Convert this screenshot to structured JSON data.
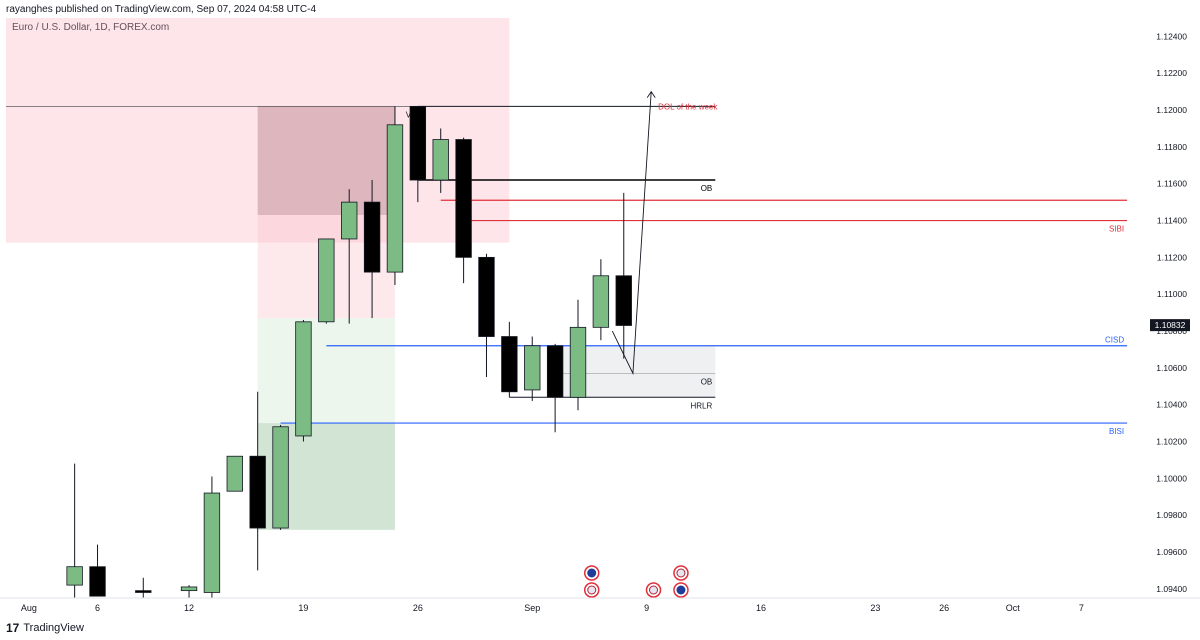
{
  "header": {
    "published": "rayanghes published on TradingView.com, Sep 07, 2024 04:58 UTC-4",
    "symbol": "Euro / U.S. Dollar, 1D, FOREX.com"
  },
  "footer": {
    "logo_glyph": "17",
    "brand": "TradingView"
  },
  "colors": {
    "bull": "#7dbb85",
    "bear": "#000000",
    "red_level": "#e0303a",
    "blue_level": "#2962ff"
  },
  "chart_data": {
    "type": "candlestick",
    "ylim": [
      1.0935,
      1.125
    ],
    "xlim": [
      -1,
      49
    ],
    "y_ticks": [
      "1.12400",
      "1.12200",
      "1.12000",
      "1.11800",
      "1.11600",
      "1.11400",
      "1.11200",
      "1.11000",
      "1.10800",
      "1.10600",
      "1.10400",
      "1.10200",
      "1.10000",
      "1.09800",
      "1.09600",
      "1.09400"
    ],
    "x_ticks": [
      {
        "label": "Aug",
        "i": 0
      },
      {
        "label": "6",
        "i": 3
      },
      {
        "label": "12",
        "i": 7
      },
      {
        "label": "19",
        "i": 12
      },
      {
        "label": "26",
        "i": 17
      },
      {
        "label": "Sep",
        "i": 22
      },
      {
        "label": "9",
        "i": 27
      },
      {
        "label": "16",
        "i": 32
      },
      {
        "label": "23",
        "i": 37
      },
      {
        "label": "26",
        "i": 40
      },
      {
        "label": "Oct",
        "i": 43
      },
      {
        "label": "7",
        "i": 46
      }
    ],
    "last_price": "1.10832",
    "candles": [
      {
        "i": 2,
        "o": 1.0942,
        "h": 1.1008,
        "l": 1.0935,
        "c": 1.0952
      },
      {
        "i": 3,
        "o": 1.0952,
        "h": 1.0964,
        "l": 1.0936,
        "c": 1.0936
      },
      {
        "i": 5,
        "o": 1.0939,
        "h": 1.0946,
        "l": 1.0935,
        "c": 1.0938
      },
      {
        "i": 7,
        "o": 1.0939,
        "h": 1.0942,
        "l": 1.0935,
        "c": 1.0941
      },
      {
        "i": 8,
        "o": 1.0938,
        "h": 1.1001,
        "l": 1.0935,
        "c": 1.0992
      },
      {
        "i": 9,
        "o": 1.0993,
        "h": 1.1012,
        "l": 1.0993,
        "c": 1.1012
      },
      {
        "i": 10,
        "o": 1.1012,
        "h": 1.1047,
        "l": 1.095,
        "c": 1.0973
      },
      {
        "i": 11,
        "o": 1.0973,
        "h": 1.1029,
        "l": 1.0972,
        "c": 1.1028
      },
      {
        "i": 12,
        "o": 1.1023,
        "h": 1.1086,
        "l": 1.102,
        "c": 1.1085
      },
      {
        "i": 13,
        "o": 1.1085,
        "h": 1.113,
        "l": 1.1084,
        "c": 1.113
      },
      {
        "i": 14,
        "o": 1.113,
        "h": 1.1157,
        "l": 1.1084,
        "c": 1.115
      },
      {
        "i": 15,
        "o": 1.115,
        "h": 1.1162,
        "l": 1.1087,
        "c": 1.1112
      },
      {
        "i": 16,
        "o": 1.1112,
        "h": 1.1202,
        "l": 1.1105,
        "c": 1.1192
      },
      {
        "i": 17,
        "o": 1.1202,
        "h": 1.1202,
        "l": 1.115,
        "c": 1.1162
      },
      {
        "i": 18,
        "o": 1.1162,
        "h": 1.119,
        "l": 1.1155,
        "c": 1.1184
      },
      {
        "i": 19,
        "o": 1.1184,
        "h": 1.1185,
        "l": 1.1106,
        "c": 1.112
      },
      {
        "i": 20,
        "o": 1.112,
        "h": 1.1122,
        "l": 1.1055,
        "c": 1.1077
      },
      {
        "i": 21,
        "o": 1.1077,
        "h": 1.1085,
        "l": 1.1044,
        "c": 1.1047
      },
      {
        "i": 22,
        "o": 1.1048,
        "h": 1.1077,
        "l": 1.1042,
        "c": 1.1072
      },
      {
        "i": 23,
        "o": 1.1072,
        "h": 1.1073,
        "l": 1.1025,
        "c": 1.1044
      },
      {
        "i": 24,
        "o": 1.1044,
        "h": 1.1097,
        "l": 1.1037,
        "c": 1.1082
      },
      {
        "i": 25,
        "o": 1.1082,
        "h": 1.1119,
        "l": 1.1075,
        "c": 1.111
      },
      {
        "i": 26,
        "o": 1.111,
        "h": 1.1155,
        "l": 1.1065,
        "c": 1.1083
      }
    ],
    "annotations": {
      "levels": [
        {
          "name": "vi",
          "label": "V.I",
          "y": 1.1202,
          "i0": -1,
          "i1": 17,
          "color": "#131722",
          "width": 0.6
        },
        {
          "name": "vi-right",
          "label": "",
          "y": 1.1202,
          "i0": 17,
          "i1": 30,
          "color": "#131722",
          "width": 1
        },
        {
          "name": "ob-upper",
          "label": "OB",
          "y": 1.1162,
          "i0": 17,
          "i1": 30,
          "color": "#000000",
          "width": 1.5
        },
        {
          "name": "red-upper",
          "label": "",
          "y": 1.1151,
          "i0": 18,
          "i1": 48,
          "color": "#e0303a",
          "width": 1.2
        },
        {
          "name": "sibi",
          "label": "SIBI",
          "y": 1.114,
          "i0": 19,
          "i1": 48,
          "color": "#e0303a",
          "width": 1.2
        },
        {
          "name": "cisd",
          "label": "CISD",
          "y": 1.1072,
          "i0": 13,
          "i1": 48,
          "color": "#2962ff",
          "width": 1.2
        },
        {
          "name": "ob-lower",
          "label": "OB",
          "y": 1.1057,
          "i0": 23,
          "i1": 30,
          "color": "#888888",
          "width": 0.6
        },
        {
          "name": "hrlr",
          "label": "HRLR",
          "y": 1.1044,
          "i0": 21,
          "i1": 30,
          "color": "#131722",
          "width": 1
        },
        {
          "name": "bisi",
          "label": "BISI",
          "y": 1.103,
          "i0": 11,
          "i1": 48,
          "color": "#2962ff",
          "width": 1.2
        }
      ],
      "zones": [
        {
          "name": "premium-zone",
          "i0": -1,
          "i1": 21,
          "y0": 1.1128,
          "y1": 1.125,
          "color": "#f8b4c4",
          "opacity": 0.35
        },
        {
          "name": "bear-ob-zone",
          "i0": 10,
          "i1": 16,
          "y0": 1.1143,
          "y1": 1.1202,
          "color": "#a0606a",
          "opacity": 0.35
        },
        {
          "name": "pink-extension",
          "i0": 10,
          "i1": 16,
          "y0": 1.1087,
          "y1": 1.1143,
          "color": "#f8c0c8",
          "opacity": 0.35
        },
        {
          "name": "green-light-zone",
          "i0": 10,
          "i1": 16,
          "y0": 1.103,
          "y1": 1.1087,
          "color": "#d4ecd6",
          "opacity": 0.45
        },
        {
          "name": "green-dark-zone",
          "i0": 10,
          "i1": 16,
          "y0": 1.0972,
          "y1": 1.103,
          "color": "#8fbf95",
          "opacity": 0.4
        },
        {
          "name": "ob-lower-box",
          "i0": 23,
          "i1": 30,
          "y0": 1.1044,
          "y1": 1.1072,
          "color": "#cfd3da",
          "opacity": 0.35
        }
      ],
      "texts": [
        {
          "name": "dol-label",
          "text": "DOL of the week",
          "i": 27.5,
          "y": 1.1202,
          "color": "#e0303a"
        }
      ],
      "path": {
        "name": "projection-arrow",
        "points": [
          [
            25.5,
            1.108
          ],
          [
            26.4,
            1.1057
          ],
          [
            27.2,
            1.121
          ]
        ]
      },
      "events": [
        {
          "name": "eu-flag-icon",
          "i": 24.6,
          "slot": 1
        },
        {
          "name": "us-flag-icon",
          "i": 24.6,
          "slot": 0
        },
        {
          "name": "us-flag-icon",
          "i": 27.3,
          "slot": 0
        },
        {
          "name": "us-flag-icon",
          "i": 28.5,
          "slot": 1
        },
        {
          "name": "eu-flag-icon",
          "i": 28.5,
          "slot": 0
        }
      ]
    }
  }
}
